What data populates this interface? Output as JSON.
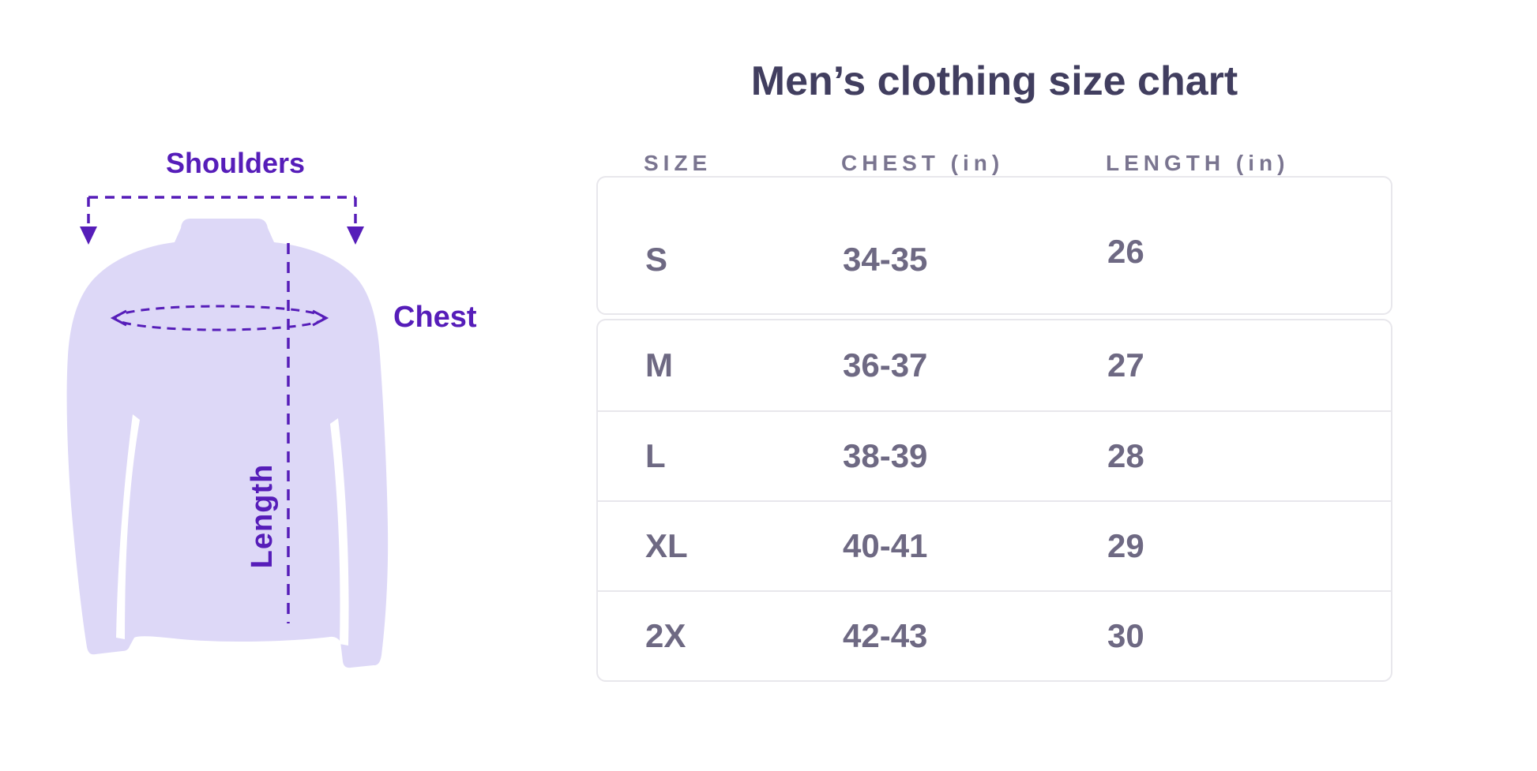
{
  "title": "Men’s clothing size chart",
  "diagram": {
    "shoulders_label": "Shoulders",
    "chest_label": "Chest",
    "length_label": "Length"
  },
  "table": {
    "headers": [
      "SIZE",
      "CHEST (in)",
      "LENGTH (in)"
    ],
    "rows": [
      {
        "size": "S",
        "chest": "34-35",
        "length": "26"
      },
      {
        "size": "M",
        "chest": "36-37",
        "length": "27"
      },
      {
        "size": "L",
        "chest": "38-39",
        "length": "28"
      },
      {
        "size": "XL",
        "chest": "40-41",
        "length": "29"
      },
      {
        "size": "2X",
        "chest": "42-43",
        "length": "30"
      }
    ]
  },
  "colors": {
    "accent_purple": "#561DB9",
    "shirt_fill": "#DDD8F7",
    "title_text": "#413E5F",
    "header_text": "#7A7590",
    "cell_text": "#6E6983",
    "table_border": "#E8E7EC"
  },
  "chart_data": {
    "type": "table",
    "title": "Men’s clothing size chart",
    "columns": [
      "SIZE",
      "CHEST (in)",
      "LENGTH (in)"
    ],
    "rows": [
      [
        "S",
        "34-35",
        "26"
      ],
      [
        "M",
        "36-37",
        "27"
      ],
      [
        "L",
        "38-39",
        "28"
      ],
      [
        "XL",
        "40-41",
        "29"
      ],
      [
        "2X",
        "42-43",
        "30"
      ]
    ],
    "units": "inches",
    "annotations": [
      "Shoulders",
      "Chest",
      "Length"
    ]
  }
}
